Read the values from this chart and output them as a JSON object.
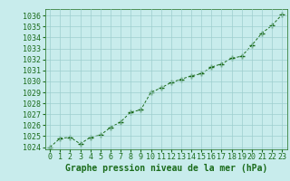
{
  "x": [
    0,
    1,
    2,
    3,
    4,
    5,
    6,
    7,
    8,
    9,
    10,
    11,
    12,
    13,
    14,
    15,
    16,
    17,
    18,
    19,
    20,
    21,
    22,
    23
  ],
  "y": [
    1024.0,
    1024.8,
    1024.9,
    1024.3,
    1024.9,
    1025.1,
    1025.8,
    1026.3,
    1027.2,
    1027.4,
    1029.0,
    1029.4,
    1029.9,
    1030.2,
    1030.5,
    1030.7,
    1031.3,
    1031.6,
    1032.1,
    1032.3,
    1033.3,
    1034.4,
    1035.1,
    1036.1
  ],
  "line_color": "#1a6b1a",
  "marker": "+",
  "marker_size": 4,
  "background_color": "#c8ecec",
  "grid_color": "#9ecece",
  "xlabel": "Graphe pression niveau de la mer (hPa)",
  "xlabel_fontsize": 7,
  "tick_fontsize": 6,
  "xlim": [
    -0.5,
    23.5
  ],
  "ylim": [
    1023.8,
    1036.6
  ],
  "yticks": [
    1024,
    1025,
    1026,
    1027,
    1028,
    1029,
    1030,
    1031,
    1032,
    1033,
    1034,
    1035,
    1036
  ],
  "xticks": [
    0,
    1,
    2,
    3,
    4,
    5,
    6,
    7,
    8,
    9,
    10,
    11,
    12,
    13,
    14,
    15,
    16,
    17,
    18,
    19,
    20,
    21,
    22,
    23
  ]
}
